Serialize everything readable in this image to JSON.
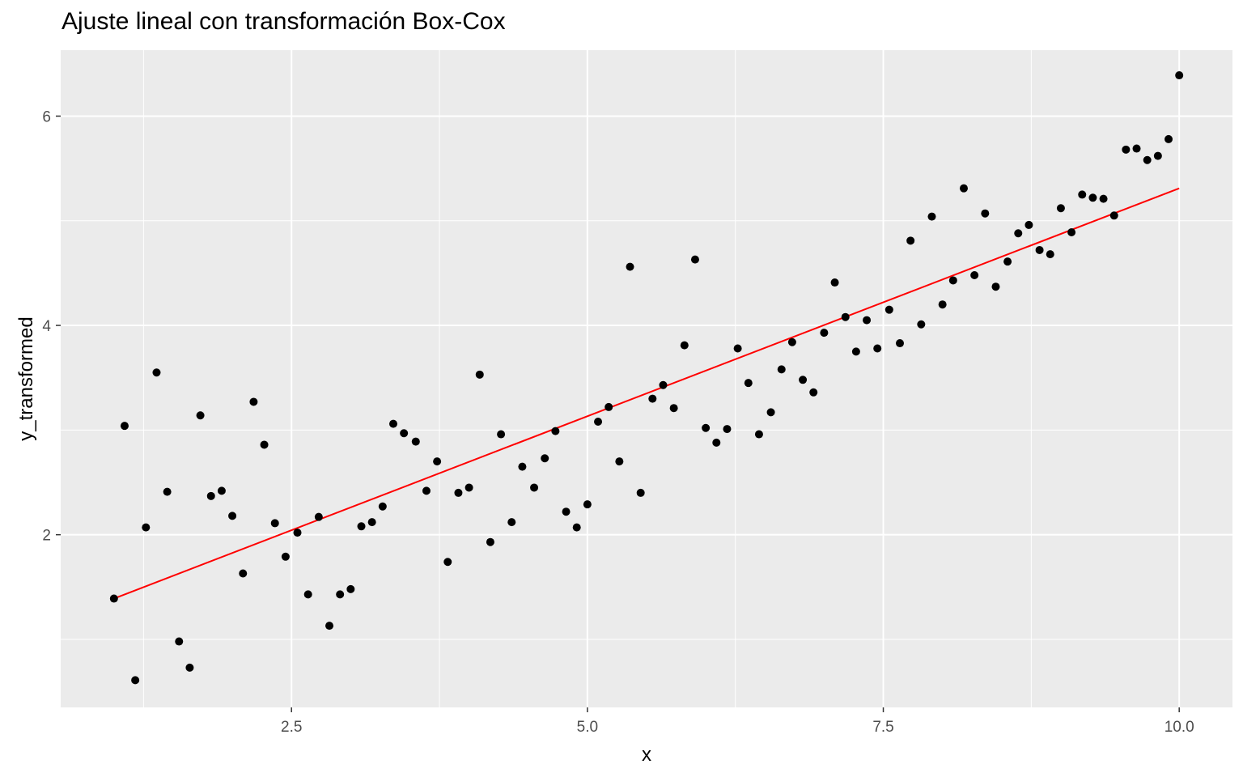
{
  "chart_data": {
    "type": "scatter",
    "title": "Ajuste lineal con transformación Box-Cox",
    "xlabel": "x",
    "ylabel": "y_transformed",
    "xlim": [
      0.55,
      10.45
    ],
    "ylim": [
      0.35,
      6.63
    ],
    "x_ticks": [
      2.5,
      5.0,
      7.5,
      10.0
    ],
    "x_tick_labels": [
      "2.5",
      "5.0",
      "7.5",
      "10.0"
    ],
    "y_ticks": [
      2,
      4,
      6
    ],
    "y_tick_labels": [
      "2",
      "4",
      "6"
    ],
    "grid": true,
    "legend": "none",
    "colors": {
      "panel_bg": "#ebebeb",
      "grid": "#ffffff",
      "points": "#000000",
      "fit_line": "#ff0000",
      "tick_label": "#4d4d4d"
    },
    "series": [
      {
        "type": "scatter",
        "x": [
          1.0,
          1.09,
          1.18,
          1.27,
          1.36,
          1.45,
          1.55,
          1.64,
          1.73,
          1.82,
          1.91,
          2.0,
          2.09,
          2.18,
          2.27,
          2.36,
          2.45,
          2.55,
          2.64,
          2.73,
          2.82,
          2.91,
          3.0,
          3.09,
          3.18,
          3.27,
          3.36,
          3.45,
          3.55,
          3.64,
          3.73,
          3.82,
          3.91,
          4.0,
          4.09,
          4.18,
          4.27,
          4.36,
          4.45,
          4.55,
          4.64,
          4.73,
          4.82,
          4.91,
          5.0,
          5.09,
          5.18,
          5.27,
          5.36,
          5.45,
          5.55,
          5.64,
          5.73,
          5.82,
          5.91,
          6.0,
          6.09,
          6.18,
          6.27,
          6.36,
          6.45,
          6.55,
          6.64,
          6.73,
          6.82,
          6.91,
          7.0,
          7.09,
          7.18,
          7.27,
          7.36,
          7.45,
          7.55,
          7.64,
          7.73,
          7.82,
          7.91,
          8.0,
          8.09,
          8.18,
          8.27,
          8.36,
          8.45,
          8.55,
          8.64,
          8.73,
          8.82,
          8.91,
          9.0,
          9.09,
          9.18,
          9.27,
          9.36,
          9.45,
          9.55,
          9.64,
          9.73,
          9.82,
          9.91,
          10.0
        ],
        "y": [
          1.39,
          3.04,
          0.61,
          2.07,
          3.55,
          2.41,
          0.98,
          0.73,
          3.14,
          2.37,
          2.42,
          2.18,
          1.63,
          3.27,
          2.86,
          2.11,
          1.79,
          2.02,
          1.43,
          2.17,
          1.13,
          1.43,
          1.48,
          2.08,
          2.12,
          2.27,
          3.06,
          2.97,
          2.89,
          2.42,
          2.7,
          1.74,
          2.4,
          2.45,
          3.53,
          1.93,
          2.96,
          2.12,
          2.65,
          2.45,
          2.73,
          2.99,
          2.22,
          2.07,
          2.29,
          3.08,
          3.22,
          2.7,
          4.56,
          2.4,
          3.3,
          3.43,
          3.21,
          3.81,
          4.63,
          3.02,
          2.88,
          3.01,
          3.78,
          3.45,
          2.96,
          3.17,
          3.58,
          3.84,
          3.48,
          3.36,
          3.93,
          4.41,
          4.08,
          3.75,
          4.05,
          3.78,
          4.15,
          3.83,
          4.81,
          4.01,
          5.04,
          4.2,
          4.43,
          5.31,
          4.48,
          5.07,
          4.37,
          4.61,
          4.88,
          4.96,
          4.72,
          4.68,
          5.12,
          4.89,
          5.25,
          5.22,
          5.21,
          5.05,
          5.68,
          5.69,
          5.58,
          5.62,
          5.78,
          6.39
        ]
      },
      {
        "type": "line",
        "name": "",
        "x": [
          1.0,
          10.0
        ],
        "y": [
          1.39,
          5.31
        ]
      }
    ]
  }
}
